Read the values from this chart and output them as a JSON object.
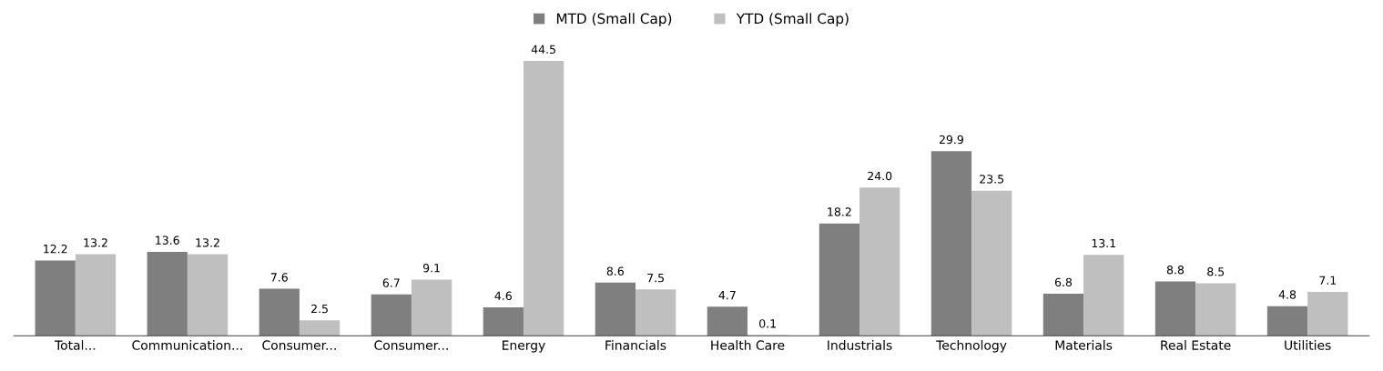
{
  "chart_data": {
    "type": "bar",
    "categories": [
      "Total...",
      "Communication...",
      "Consumer...",
      "Consumer...",
      "Energy",
      "Financials",
      "Health Care",
      "Industrials",
      "Technology",
      "Materials",
      "Real Estate",
      "Utilities"
    ],
    "series": [
      {
        "name": "MTD (Small Cap)",
        "color": "#7f7f7f",
        "values": [
          12.2,
          13.6,
          7.6,
          6.7,
          4.6,
          8.6,
          4.7,
          18.2,
          29.9,
          6.8,
          8.8,
          4.8
        ],
        "value_labels": [
          "12.2",
          "13.6",
          "7.6",
          "6.7",
          "4.6",
          "8.6",
          "4.7",
          "18.2",
          "29.9",
          "6.8",
          "8.8",
          "4.8"
        ]
      },
      {
        "name": "YTD (Small Cap)",
        "color": "#bfbfbf",
        "values": [
          13.2,
          13.2,
          2.5,
          9.1,
          44.5,
          7.5,
          0.1,
          24.0,
          23.5,
          13.1,
          8.5,
          7.1
        ],
        "value_labels": [
          "13.2",
          "13.2",
          "2.5",
          "9.1",
          "44.5",
          "7.5",
          "0.1",
          "24.0",
          "23.5",
          "13.1",
          "8.5",
          "7.1"
        ]
      }
    ],
    "legend": "top",
    "grid": false
  }
}
